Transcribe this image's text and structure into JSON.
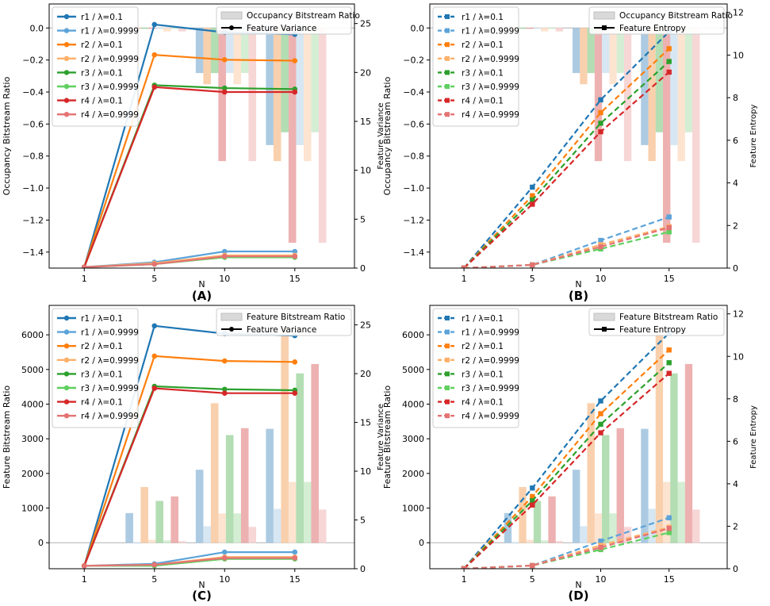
{
  "chart_data": [
    {
      "panel": "(A)",
      "type": "bar",
      "xlabel": "N",
      "categories": [
        "1",
        "5",
        "10",
        "15"
      ],
      "left_axis": {
        "label": "Occupancy Bitstream Ratio",
        "ylim": [
          -1.5,
          0.15
        ],
        "ticks": [
          {
            "v": 0.0,
            "t": "0.0"
          },
          {
            "v": -0.2,
            "t": "−0.2"
          },
          {
            "v": -0.4,
            "t": "−0.4"
          },
          {
            "v": -0.6,
            "t": "−0.6"
          },
          {
            "v": -0.8,
            "t": "−0.8"
          },
          {
            "v": -1.0,
            "t": "−1.0"
          },
          {
            "v": -1.2,
            "t": "−1.2"
          },
          {
            "v": -1.4,
            "t": "−1.4"
          }
        ]
      },
      "right_axis": {
        "label": "Feature Variance",
        "ylim": [
          0,
          27
        ],
        "ticks": [
          {
            "v": 0,
            "t": "0"
          },
          {
            "v": 5,
            "t": "5"
          },
          {
            "v": 10,
            "t": "10"
          },
          {
            "v": 15,
            "t": "15"
          },
          {
            "v": 20,
            "t": "20"
          },
          {
            "v": 25,
            "t": "25"
          }
        ]
      },
      "bar_groups": [
        "5",
        "10",
        "15"
      ],
      "bar_series": [
        {
          "name": "r1 / λ=0.1",
          "color": "#9ec3de",
          "values": [
            0,
            -0.28,
            -0.73
          ]
        },
        {
          "name": "r2 / λ=0.1",
          "color": "#f9c89f",
          "values": [
            0,
            -0.35,
            -0.83
          ]
        },
        {
          "name": "r3 / λ=0.1",
          "color": "#a6d8a6",
          "values": [
            0,
            -0.28,
            -0.65
          ]
        },
        {
          "name": "r4 / λ=0.1",
          "color": "#eba4a4",
          "values": [
            0,
            -0.83,
            -1.34
          ]
        },
        {
          "name": "r1 / λ=0.9999",
          "color": "#d0e3f2",
          "values": [
            0,
            -0.28,
            -0.73
          ]
        },
        {
          "name": "r2 / λ=0.9999",
          "color": "#fde0c9",
          "values": [
            -0.02,
            -0.35,
            -0.83
          ]
        },
        {
          "name": "r3 / λ=0.9999",
          "color": "#cdeccd",
          "values": [
            0,
            -0.28,
            -0.65
          ]
        },
        {
          "name": "r4 / λ=0.9999",
          "color": "#f6cfcf",
          "values": [
            -0.02,
            -0.83,
            -1.34
          ]
        }
      ],
      "line_marker": "circle",
      "line_dash": "solid",
      "line_series": [
        {
          "name": "r1 / λ=0.1",
          "color": "#1f77b4",
          "values": [
            0.1,
            24.9,
            24.1,
            23.9
          ]
        },
        {
          "name": "r1 / λ=0.9999",
          "color": "#5ba3d9",
          "values": [
            0.1,
            0.6,
            1.7,
            1.7
          ]
        },
        {
          "name": "r2 / λ=0.1",
          "color": "#ff7f0e",
          "values": [
            0.1,
            21.8,
            21.3,
            21.2
          ]
        },
        {
          "name": "r2 / λ=0.9999",
          "color": "#ffb069",
          "values": [
            0.1,
            0.5,
            1.3,
            1.3
          ]
        },
        {
          "name": "r3 / λ=0.1",
          "color": "#2ca02c",
          "values": [
            0.1,
            18.7,
            18.4,
            18.3
          ]
        },
        {
          "name": "r3 / λ=0.9999",
          "color": "#5fd05f",
          "values": [
            0.1,
            0.4,
            1.1,
            1.1
          ]
        },
        {
          "name": "r4 / λ=0.1",
          "color": "#d62728",
          "values": [
            0.1,
            18.5,
            18.0,
            18.0
          ]
        },
        {
          "name": "r4 / λ=0.9999",
          "color": "#e57373",
          "values": [
            0.1,
            0.4,
            1.2,
            1.2
          ]
        }
      ],
      "legend_main": [
        "r1 / λ=0.1",
        "r1 / λ=0.9999",
        "r2 / λ=0.1",
        "r2 / λ=0.9999",
        "r3 / λ=0.1",
        "r3 / λ=0.9999",
        "r4 / λ=0.1",
        "r4 / λ=0.9999"
      ],
      "legend_aux": {
        "bar_label": "Occupancy Bitstream Ratio",
        "line_label": "Feature Variance"
      }
    },
    {
      "panel": "(B)",
      "type": "bar",
      "xlabel": "N",
      "categories": [
        "1",
        "5",
        "10",
        "15"
      ],
      "left_axis": {
        "label": "Occupancy Bitstream Ratio",
        "ylim": [
          -1.5,
          0.15
        ],
        "ticks": [
          {
            "v": 0.0,
            "t": "0.0"
          },
          {
            "v": -0.2,
            "t": "−0.2"
          },
          {
            "v": -0.4,
            "t": "−0.4"
          },
          {
            "v": -0.6,
            "t": "−0.6"
          },
          {
            "v": -0.8,
            "t": "−0.8"
          },
          {
            "v": -1.0,
            "t": "−1.0"
          },
          {
            "v": -1.2,
            "t": "−1.2"
          },
          {
            "v": -1.4,
            "t": "−1.4"
          }
        ]
      },
      "right_axis": {
        "label": "Feature Entropy",
        "ylim": [
          0,
          12.4
        ],
        "ticks": [
          {
            "v": 0,
            "t": "0"
          },
          {
            "v": 2,
            "t": "2"
          },
          {
            "v": 4,
            "t": "4"
          },
          {
            "v": 6,
            "t": "6"
          },
          {
            "v": 8,
            "t": "8"
          },
          {
            "v": 10,
            "t": "10"
          },
          {
            "v": 12,
            "t": "12"
          }
        ]
      },
      "bar_groups": [
        "5",
        "10",
        "15"
      ],
      "bar_series": [
        {
          "name": "r1 / λ=0.1",
          "color": "#9ec3de",
          "values": [
            0,
            -0.28,
            -0.73
          ]
        },
        {
          "name": "r2 / λ=0.1",
          "color": "#f9c89f",
          "values": [
            0,
            -0.35,
            -0.83
          ]
        },
        {
          "name": "r3 / λ=0.1",
          "color": "#a6d8a6",
          "values": [
            0,
            -0.28,
            -0.65
          ]
        },
        {
          "name": "r4 / λ=0.1",
          "color": "#eba4a4",
          "values": [
            0,
            -0.83,
            -1.34
          ]
        },
        {
          "name": "r1 / λ=0.9999",
          "color": "#d0e3f2",
          "values": [
            0,
            -0.28,
            -0.73
          ]
        },
        {
          "name": "r2 / λ=0.9999",
          "color": "#fde0c9",
          "values": [
            -0.02,
            -0.35,
            -0.83
          ]
        },
        {
          "name": "r3 / λ=0.9999",
          "color": "#cdeccd",
          "values": [
            0,
            -0.28,
            -0.65
          ]
        },
        {
          "name": "r4 / λ=0.9999",
          "color": "#f6cfcf",
          "values": [
            -0.02,
            -0.83,
            -1.34
          ]
        }
      ],
      "line_marker": "square",
      "line_dash": "dashed",
      "line_series": [
        {
          "name": "r1 / λ=0.1",
          "color": "#1f77b4",
          "values": [
            0.0,
            3.8,
            7.9,
            11.1
          ]
        },
        {
          "name": "r1 / λ=0.9999",
          "color": "#5ba3d9",
          "values": [
            0.0,
            0.15,
            1.3,
            2.4
          ]
        },
        {
          "name": "r2 / λ=0.1",
          "color": "#ff7f0e",
          "values": [
            0.0,
            3.4,
            7.3,
            10.3
          ]
        },
        {
          "name": "r2 / λ=0.9999",
          "color": "#ffb069",
          "values": [
            0.0,
            0.15,
            1.1,
            1.95
          ]
        },
        {
          "name": "r3 / λ=0.1",
          "color": "#2ca02c",
          "values": [
            0.0,
            3.2,
            6.8,
            9.7
          ]
        },
        {
          "name": "r3 / λ=0.9999",
          "color": "#5fd05f",
          "values": [
            0.0,
            0.15,
            0.9,
            1.7
          ]
        },
        {
          "name": "r4 / λ=0.1",
          "color": "#d62728",
          "values": [
            0.0,
            3.0,
            6.4,
            9.2
          ]
        },
        {
          "name": "r4 / λ=0.9999",
          "color": "#e57373",
          "values": [
            0.0,
            0.15,
            1.0,
            1.9
          ]
        }
      ],
      "legend_main": [
        "r1 / λ=0.1",
        "r1 / λ=0.9999",
        "r2 / λ=0.1",
        "r2 / λ=0.9999",
        "r3 / λ=0.1",
        "r3 / λ=0.9999",
        "r4 / λ=0.1",
        "r4 / λ=0.9999"
      ],
      "legend_aux": {
        "bar_label": "Occupancy Bitstream Ratio",
        "line_label": "Feature Entropy"
      }
    },
    {
      "panel": "(C)",
      "type": "bar",
      "xlabel": "N",
      "categories": [
        "1",
        "5",
        "10",
        "15"
      ],
      "left_axis": {
        "label": "Feature Bitstream Ratio",
        "ylim": [
          -750,
          6850
        ],
        "ticks": [
          {
            "v": 0,
            "t": "0"
          },
          {
            "v": 1000,
            "t": "1000"
          },
          {
            "v": 2000,
            "t": "2000"
          },
          {
            "v": 3000,
            "t": "3000"
          },
          {
            "v": 4000,
            "t": "4000"
          },
          {
            "v": 5000,
            "t": "5000"
          },
          {
            "v": 6000,
            "t": "6000"
          }
        ]
      },
      "right_axis": {
        "label": "Feature Variance",
        "ylim": [
          0,
          27
        ],
        "ticks": [
          {
            "v": 0,
            "t": "0"
          },
          {
            "v": 5,
            "t": "5"
          },
          {
            "v": 10,
            "t": "10"
          },
          {
            "v": 15,
            "t": "15"
          },
          {
            "v": 20,
            "t": "20"
          },
          {
            "v": 25,
            "t": "25"
          }
        ]
      },
      "bar_groups": [
        "5",
        "10",
        "15"
      ],
      "bar_series": [
        {
          "name": "r1 / λ=0.1",
          "color": "#9ec3de",
          "values": [
            850,
            2100,
            3280
          ]
        },
        {
          "name": "r1 / λ=0.9999",
          "color": "#d0e3f2",
          "values": [
            0,
            470,
            970
          ]
        },
        {
          "name": "r2 / λ=0.1",
          "color": "#f9c89f",
          "values": [
            1600,
            4020,
            6200
          ]
        },
        {
          "name": "r2 / λ=0.9999",
          "color": "#fde0c9",
          "values": [
            80,
            840,
            1750
          ]
        },
        {
          "name": "r3 / λ=0.1",
          "color": "#a6d8a6",
          "values": [
            1200,
            3100,
            4880
          ]
        },
        {
          "name": "r3 / λ=0.9999",
          "color": "#cdeccd",
          "values": [
            60,
            840,
            1750
          ]
        },
        {
          "name": "r4 / λ=0.1",
          "color": "#eba4a4",
          "values": [
            1330,
            3300,
            5150
          ]
        },
        {
          "name": "r4 / λ=0.9999",
          "color": "#f6cfcf",
          "values": [
            40,
            450,
            950
          ]
        }
      ],
      "line_marker": "circle",
      "line_dash": "solid",
      "line_series": [
        {
          "name": "r1 / λ=0.1",
          "color": "#1f77b4",
          "values": [
            0.3,
            24.9,
            24.1,
            23.9
          ]
        },
        {
          "name": "r1 / λ=0.9999",
          "color": "#5ba3d9",
          "values": [
            0.3,
            0.5,
            1.7,
            1.7
          ]
        },
        {
          "name": "r2 / λ=0.1",
          "color": "#ff7f0e",
          "values": [
            0.3,
            21.8,
            21.3,
            21.2
          ]
        },
        {
          "name": "r2 / λ=0.9999",
          "color": "#ffb069",
          "values": [
            0.3,
            0.4,
            1.2,
            1.2
          ]
        },
        {
          "name": "r3 / λ=0.1",
          "color": "#2ca02c",
          "values": [
            0.3,
            18.7,
            18.4,
            18.3
          ]
        },
        {
          "name": "r3 / λ=0.9999",
          "color": "#5fd05f",
          "values": [
            0.3,
            0.3,
            1.0,
            1.0
          ]
        },
        {
          "name": "r4 / λ=0.1",
          "color": "#d62728",
          "values": [
            0.3,
            18.5,
            18.0,
            18.0
          ]
        },
        {
          "name": "r4 / λ=0.9999",
          "color": "#e57373",
          "values": [
            0.3,
            0.4,
            1.1,
            1.1
          ]
        }
      ],
      "legend_main": [
        "r1 / λ=0.1",
        "r1 / λ=0.9999",
        "r2 / λ=0.1",
        "r2 / λ=0.9999",
        "r3 / λ=0.1",
        "r3 / λ=0.9999",
        "r4 / λ=0.1",
        "r4 / λ=0.9999"
      ],
      "legend_aux": {
        "bar_label": "Feature Bitstream Ratio",
        "line_label": "Feature Variance"
      }
    },
    {
      "panel": "(D)",
      "type": "bar",
      "xlabel": "N",
      "categories": [
        "1",
        "5",
        "10",
        "15"
      ],
      "left_axis": {
        "label": "Feature Bitstream Ratio",
        "ylim": [
          -750,
          6850
        ],
        "ticks": [
          {
            "v": 0,
            "t": "0"
          },
          {
            "v": 1000,
            "t": "1000"
          },
          {
            "v": 2000,
            "t": "2000"
          },
          {
            "v": 3000,
            "t": "3000"
          },
          {
            "v": 4000,
            "t": "4000"
          },
          {
            "v": 5000,
            "t": "5000"
          },
          {
            "v": 6000,
            "t": "6000"
          }
        ]
      },
      "right_axis": {
        "label": "Feature Entropy",
        "ylim": [
          0,
          12.4
        ],
        "ticks": [
          {
            "v": 0,
            "t": "0"
          },
          {
            "v": 2,
            "t": "2"
          },
          {
            "v": 4,
            "t": "4"
          },
          {
            "v": 6,
            "t": "6"
          },
          {
            "v": 8,
            "t": "8"
          },
          {
            "v": 10,
            "t": "10"
          },
          {
            "v": 12,
            "t": "12"
          }
        ]
      },
      "bar_groups": [
        "5",
        "10",
        "15"
      ],
      "bar_series": [
        {
          "name": "r1 / λ=0.1",
          "color": "#9ec3de",
          "values": [
            850,
            2100,
            3280
          ]
        },
        {
          "name": "r1 / λ=0.9999",
          "color": "#d0e3f2",
          "values": [
            0,
            470,
            970
          ]
        },
        {
          "name": "r2 / λ=0.1",
          "color": "#f9c89f",
          "values": [
            1600,
            4020,
            6200
          ]
        },
        {
          "name": "r2 / λ=0.9999",
          "color": "#fde0c9",
          "values": [
            80,
            840,
            1750
          ]
        },
        {
          "name": "r3 / λ=0.1",
          "color": "#a6d8a6",
          "values": [
            1200,
            3100,
            4880
          ]
        },
        {
          "name": "r3 / λ=0.9999",
          "color": "#cdeccd",
          "values": [
            60,
            840,
            1750
          ]
        },
        {
          "name": "r4 / λ=0.1",
          "color": "#eba4a4",
          "values": [
            1330,
            3300,
            5150
          ]
        },
        {
          "name": "r4 / λ=0.9999",
          "color": "#f6cfcf",
          "values": [
            40,
            450,
            950
          ]
        }
      ],
      "line_marker": "square",
      "line_dash": "dashed",
      "line_series": [
        {
          "name": "r1 / λ=0.1",
          "color": "#1f77b4",
          "values": [
            0.0,
            3.8,
            7.9,
            11.1
          ]
        },
        {
          "name": "r1 / λ=0.9999",
          "color": "#5ba3d9",
          "values": [
            0.0,
            0.15,
            1.3,
            2.4
          ]
        },
        {
          "name": "r2 / λ=0.1",
          "color": "#ff7f0e",
          "values": [
            0.0,
            3.4,
            7.3,
            10.3
          ]
        },
        {
          "name": "r2 / λ=0.9999",
          "color": "#ffb069",
          "values": [
            0.0,
            0.15,
            1.1,
            1.95
          ]
        },
        {
          "name": "r3 / λ=0.1",
          "color": "#2ca02c",
          "values": [
            0.0,
            3.2,
            6.8,
            9.7
          ]
        },
        {
          "name": "r3 / λ=0.9999",
          "color": "#5fd05f",
          "values": [
            0.0,
            0.15,
            0.9,
            1.7
          ]
        },
        {
          "name": "r4 / λ=0.1",
          "color": "#d62728",
          "values": [
            0.0,
            3.0,
            6.4,
            9.2
          ]
        },
        {
          "name": "r4 / λ=0.9999",
          "color": "#e57373",
          "values": [
            0.0,
            0.15,
            1.0,
            1.9
          ]
        }
      ],
      "legend_main": [
        "r1 / λ=0.1",
        "r1 / λ=0.9999",
        "r2 / λ=0.1",
        "r2 / λ=0.9999",
        "r3 / λ=0.1",
        "r3 / λ=0.9999",
        "r4 / λ=0.1",
        "r4 / λ=0.9999"
      ],
      "legend_aux": {
        "bar_label": "Feature Bitstream Ratio",
        "line_label": "Feature Entropy"
      }
    }
  ]
}
